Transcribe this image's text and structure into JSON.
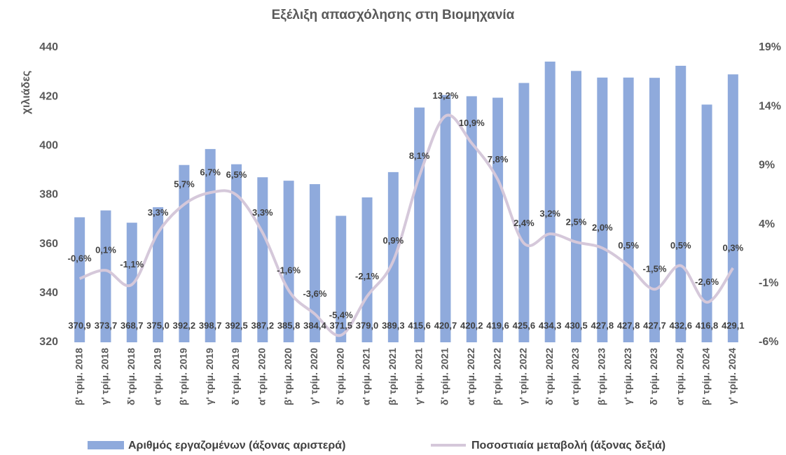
{
  "chart_data": {
    "type": "bar-line",
    "title": "Εξέλιξη απασχόλησης στη Βιομηχανία",
    "y_label": "χιλιάδες",
    "categories": [
      "β' τρίμ. 2018",
      "γ' τρίμ. 2018",
      "δ' τρίμ. 2018",
      "α' τρίμ. 2019",
      "β' τρίμ. 2019",
      "γ' τρίμ. 2019",
      "δ' τρίμ. 2019",
      "α' τρίμ. 2020",
      "β' τρίμ. 2020",
      "γ' τρίμ. 2020",
      "δ' τρίμ. 2020",
      "α' τρίμ. 2021",
      "β' τρίμ. 2021",
      "γ' τρίμ. 2021",
      "δ' τρίμ. 2021",
      "α' τρίμ. 2022",
      "β' τρίμ. 2022",
      "γ' τρίμ. 2022",
      "δ' τρίμ. 2022",
      "α' τρίμ. 2023",
      "β' τρίμ. 2023",
      "γ' τρίμ. 2023",
      "δ' τρίμ. 2023",
      "α' τρίμ. 2024",
      "β' τρίμ. 2024",
      "γ' τρίμ. 2024"
    ],
    "series": [
      {
        "name": "Αριθμός εργαζομένων (άξονας αριστερά)",
        "type": "bar",
        "color": "#8faadc",
        "values": [
          370.9,
          373.7,
          368.7,
          375.0,
          392.2,
          398.7,
          392.5,
          387.2,
          385.8,
          384.4,
          371.5,
          379.0,
          389.3,
          415.6,
          420.7,
          420.2,
          419.6,
          425.6,
          434.3,
          430.5,
          427.8,
          427.8,
          427.7,
          432.6,
          416.8,
          429.1
        ],
        "value_labels": [
          "370,9",
          "373,7",
          "368,7",
          "375,0",
          "392,2",
          "398,7",
          "392,5",
          "387,2",
          "385,8",
          "384,4",
          "371,5",
          "379,0",
          "389,3",
          "415,6",
          "420,7",
          "420,2",
          "419,6",
          "425,6",
          "434,3",
          "430,5",
          "427,8",
          "427,8",
          "427,7",
          "432,6",
          "416,8",
          "429,1"
        ]
      },
      {
        "name": "Ποσοστιαία μεταβολή (άξονας δεξιά)",
        "type": "line",
        "axis": "y2",
        "color": "#d5c8da",
        "values": [
          -0.6,
          0.1,
          -1.1,
          3.3,
          5.7,
          6.7,
          6.5,
          3.3,
          -1.6,
          -3.6,
          -5.4,
          -2.1,
          0.9,
          8.1,
          13.2,
          10.9,
          7.8,
          2.4,
          3.2,
          2.5,
          2.0,
          0.5,
          -1.5,
          0.5,
          -2.6,
          0.3
        ],
        "value_labels": [
          "-0,6%",
          "0,1%",
          "-1,1%",
          "3,3%",
          "5,7%",
          "6,7%",
          "6,5%",
          "3,3%",
          "-1,6%",
          "-3,6%",
          "-5,4%",
          "-2,1%",
          "0,9%",
          "8,1%",
          "13,2%",
          "10,9%",
          "7,8%",
          "2,4%",
          "3,2%",
          "2,5%",
          "2,0%",
          "0,5%",
          "-1,5%",
          "0,5%",
          "-2,6%",
          "0,3%"
        ]
      }
    ],
    "ylim": [
      320,
      440
    ],
    "yticks": [
      320,
      340,
      360,
      380,
      400,
      420,
      440
    ],
    "y2lim": [
      -6,
      19
    ],
    "y2ticks": [
      {
        "value": -6,
        "label": "-6%"
      },
      {
        "value": -1,
        "label": "-1%"
      },
      {
        "value": 4,
        "label": "4%"
      },
      {
        "value": 9,
        "label": "9%"
      },
      {
        "value": 14,
        "label": "14%"
      },
      {
        "value": 19,
        "label": "19%"
      }
    ],
    "grid": false,
    "legend": "bottom"
  }
}
